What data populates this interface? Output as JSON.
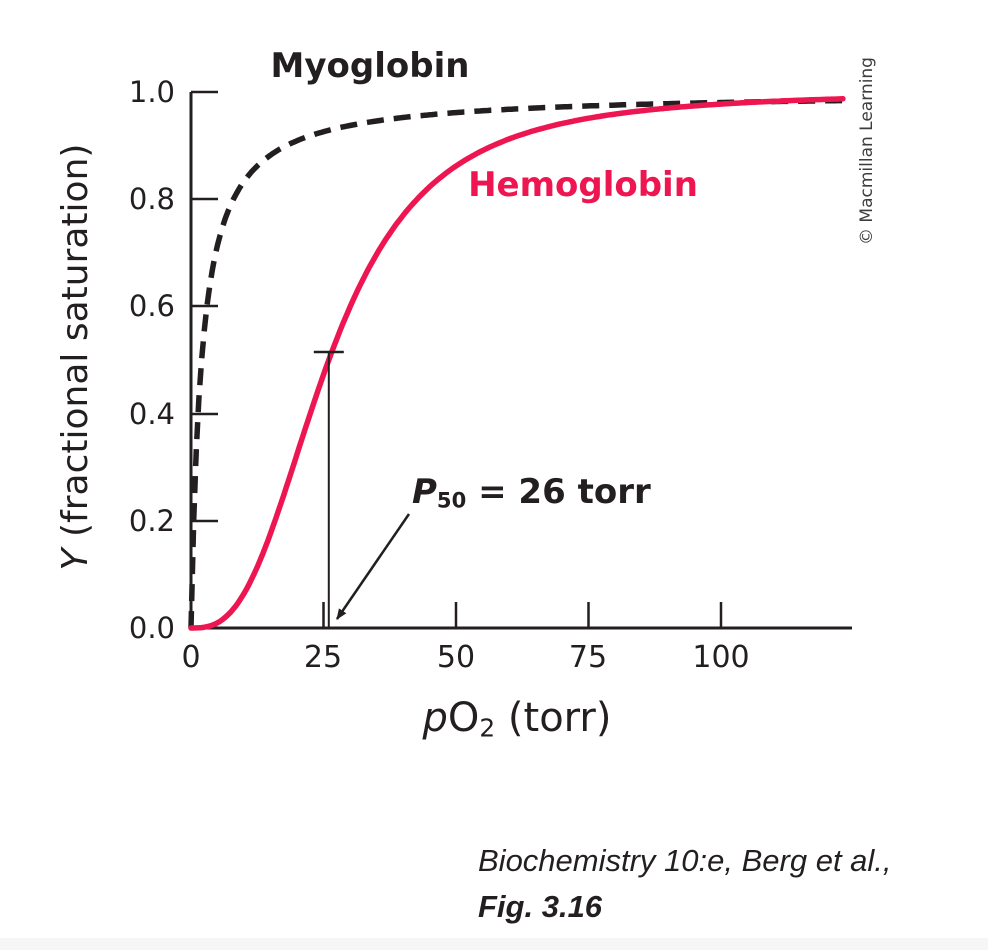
{
  "figure": {
    "credit": "© Macmillan Learning",
    "citation_line1": "Biochemistry 10:e, Berg et al.,",
    "citation_line2": "Fig. 3.16"
  },
  "chart_data": {
    "type": "line",
    "title": "",
    "xlabel": {
      "prefix_italic": "p",
      "main": "O",
      "subscript": "2",
      "suffix": " (torr)"
    },
    "ylabel": {
      "prefix_italic": "Y",
      "suffix": " (fractional saturation)"
    },
    "xlim": [
      0,
      125
    ],
    "ylim": [
      0,
      1.0
    ],
    "x_ticks": [
      0,
      25,
      50,
      75,
      100
    ],
    "x_tick_labels": [
      "0",
      "25",
      "50",
      "75",
      "100"
    ],
    "y_ticks": [
      0.0,
      0.2,
      0.4,
      0.6,
      0.8,
      1.0
    ],
    "y_tick_labels": [
      "0.0",
      "0.2",
      "0.4",
      "0.6",
      "0.8",
      "1.0"
    ],
    "grid": false,
    "legend_position": "labels-on-curves",
    "series": [
      {
        "name": "Myoglobin",
        "model": "hill",
        "p50": 2,
        "hill_n": 1,
        "dashed": true,
        "color": "#231f20",
        "points_x": [
          0,
          1,
          2,
          5,
          10,
          20,
          40,
          60,
          80,
          100,
          120
        ],
        "points_y": [
          0,
          0.33,
          0.5,
          0.71,
          0.83,
          0.91,
          0.95,
          0.97,
          0.98,
          0.98,
          0.98
        ]
      },
      {
        "name": "Hemoglobin",
        "model": "hill",
        "p50": 26,
        "hill_n": 2.8,
        "dashed": false,
        "color": "#ed1651",
        "points_x": [
          0,
          5,
          10,
          15,
          20,
          26,
          30,
          40,
          50,
          60,
          80,
          100,
          120
        ],
        "points_y": [
          0,
          0.01,
          0.06,
          0.18,
          0.32,
          0.5,
          0.6,
          0.77,
          0.86,
          0.91,
          0.96,
          0.98,
          0.99
        ]
      }
    ],
    "annotation": {
      "p_italic": "P",
      "subscript": "50",
      "rest": " = 26 torr",
      "p50_value": 26,
      "marker_top_y": 0.515
    }
  }
}
